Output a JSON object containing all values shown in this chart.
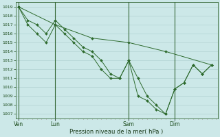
{
  "xlabel": "Pression niveau de la mer( hPa )",
  "background_color": "#cce8e8",
  "grid_color": "#aacccc",
  "line_color": "#2d6a2d",
  "ylim": [
    1006.5,
    1019.5
  ],
  "yticks": [
    1007,
    1008,
    1009,
    1010,
    1011,
    1012,
    1013,
    1014,
    1015,
    1016,
    1017,
    1018,
    1019
  ],
  "day_labels": [
    "Ven",
    "Lun",
    "Sam",
    "Dim"
  ],
  "day_positions": [
    0,
    24,
    72,
    102
  ],
  "xlim": [
    -2,
    130
  ],
  "series_sparse": {
    "x": [
      0,
      24,
      48,
      72,
      96,
      126
    ],
    "y": [
      1019,
      1017,
      1015.5,
      1015,
      1014,
      1012.5
    ]
  },
  "series_mid1": {
    "x": [
      0,
      6,
      12,
      18,
      24,
      30,
      36,
      42,
      48,
      54,
      60,
      66,
      72,
      78,
      84,
      90,
      96,
      102,
      108,
      114,
      120,
      126
    ],
    "y": [
      1019,
      1017,
      1016,
      1015,
      1017,
      1016,
      1015,
      1014,
      1013.5,
      1012,
      1011,
      1011,
      1013,
      1011,
      1009,
      1008,
      1007,
      1009.8,
      1010.5,
      1012.5,
      1011.5,
      1012.5
    ]
  },
  "series_mid2": {
    "x": [
      0,
      6,
      12,
      18,
      24,
      30,
      36,
      42,
      48,
      54,
      60,
      66,
      72,
      78,
      84,
      90,
      96,
      102,
      108,
      114,
      120,
      126
    ],
    "y": [
      1019,
      1017.5,
      1017,
      1016,
      1017.5,
      1016.5,
      1015.5,
      1014.5,
      1014,
      1013,
      1011.5,
      1011,
      1013,
      1009,
      1008.5,
      1007.5,
      1007,
      1009.8,
      1010.5,
      1012.5,
      1011.5,
      1012.5
    ]
  }
}
